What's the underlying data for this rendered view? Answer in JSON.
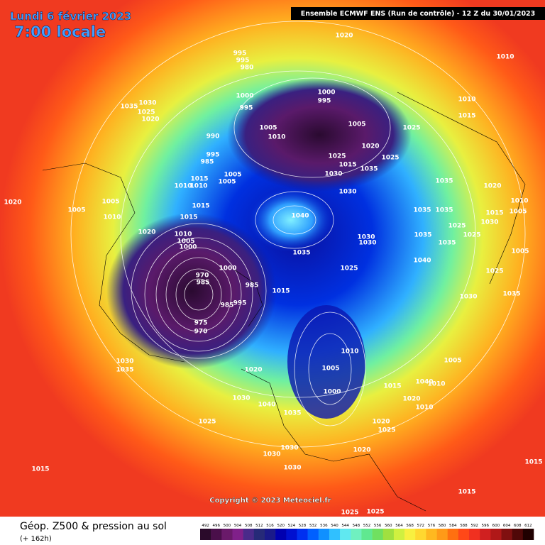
{
  "header": {
    "date": "Lundi 6 février 2023",
    "time": "7:00 locale",
    "model": "Ensemble ECMWF ENS  (Run de contrôle)  -  12 Z du 30/01/2023"
  },
  "footer": {
    "title": "Géop. Z500 & pression au sol",
    "lead": "(+ 162h)",
    "copyright": "Copyright © 2023 Meteociel.fr"
  },
  "colorbar": {
    "values": [
      492,
      496,
      500,
      504,
      508,
      512,
      516,
      520,
      524,
      528,
      532,
      536,
      540,
      544,
      548,
      552,
      556,
      560,
      564,
      568,
      572,
      576,
      580,
      584,
      588,
      592,
      596,
      600,
      604,
      608,
      612
    ],
    "colors": [
      "#2a0a2a",
      "#4a0f4a",
      "#6a1a6a",
      "#80208a",
      "#4a2a8a",
      "#262a78",
      "#1a1a8a",
      "#0000b0",
      "#0010d0",
      "#0030f0",
      "#0060ff",
      "#1090ff",
      "#30c0ff",
      "#60e8f0",
      "#70f0c0",
      "#60e890",
      "#70e060",
      "#a0e040",
      "#d0f040",
      "#f8f040",
      "#ffd830",
      "#ffb820",
      "#ff9a18",
      "#ff7010",
      "#ff4818",
      "#f03020",
      "#d02020",
      "#b01818",
      "#801010",
      "#500808",
      "#200000"
    ]
  },
  "isobar_labels": [
    "1020",
    "995",
    "995",
    "980",
    "1010",
    "1000",
    "995",
    "1000",
    "995",
    "1010",
    "1015",
    "1030",
    "1035",
    "1025",
    "1020",
    "1005",
    "1005",
    "1025",
    "990",
    "1010",
    "1020",
    "1025",
    "995",
    "985",
    "1025",
    "1015",
    "1035",
    "1030",
    "1005",
    "1015",
    "1010",
    "1010",
    "1005",
    "1035",
    "1020",
    "1030",
    "1020",
    "1005",
    "1010",
    "1005",
    "1005",
    "1035",
    "1035",
    "1015",
    "1040",
    "1015",
    "1010",
    "1025",
    "1030",
    "1015",
    "1020",
    "1010",
    "1005",
    "1000",
    "1035",
    "1025",
    "1035",
    "1030",
    "1030",
    "1035",
    "1005",
    "1040",
    "1025",
    "1025",
    "1000",
    "970",
    "985",
    "985",
    "1015",
    "1035",
    "985",
    "995",
    "1030",
    "975",
    "970",
    "1010",
    "1005",
    "1030",
    "1035",
    "1020",
    "1005",
    "1015",
    "1040",
    "1010",
    "1000",
    "1020",
    "1030",
    "1040",
    "1010",
    "1035",
    "1025",
    "1020",
    "1025",
    "1030",
    "1030",
    "1020",
    "1015",
    "1015",
    "1030",
    "1015",
    "1025",
    "1025"
  ]
}
